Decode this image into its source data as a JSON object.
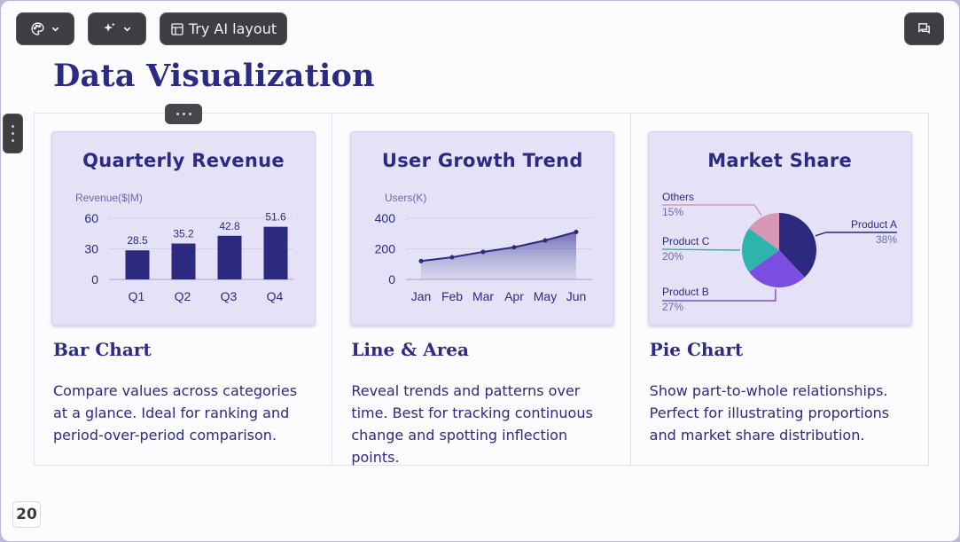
{
  "toolbar": {
    "ai_layout_label": "Try AI layout"
  },
  "slide": {
    "title": "Data Visualization",
    "page_number": "20"
  },
  "cards": [
    {
      "heading": "Bar Chart",
      "description": "Compare values across categories at a glance. Ideal for ranking and period-over-period comparison."
    },
    {
      "heading": "Line & Area",
      "description": "Reveal trends and patterns over time. Best for tracking continuous change and spotting inflection points."
    },
    {
      "heading": "Pie Chart",
      "description": "Show part-to-whole relationships. Perfect for illustrating proportions and market share distribution."
    }
  ],
  "chart_data": [
    {
      "type": "bar",
      "title": "Quarterly Revenue",
      "ylabel": "Revenue($|M)",
      "categories": [
        "Q1",
        "Q2",
        "Q3",
        "Q4"
      ],
      "values": [
        28.5,
        35.2,
        42.8,
        51.6
      ],
      "yticks": [
        0,
        30,
        60
      ],
      "ylim": [
        0,
        60
      ],
      "color": "#2b2a7e",
      "grid": true
    },
    {
      "type": "area",
      "title": "User Growth Trend",
      "ylabel": "Users(K)",
      "categories": [
        "Jan",
        "Feb",
        "Mar",
        "Apr",
        "May",
        "Jun"
      ],
      "values": [
        120,
        145,
        180,
        210,
        255,
        310
      ],
      "yticks": [
        0,
        200,
        400
      ],
      "ylim": [
        0,
        400
      ],
      "color": "#2b2a7e",
      "grid": true
    },
    {
      "type": "pie",
      "title": "Market Share",
      "slices": [
        {
          "label": "Product A",
          "pct": "38%",
          "value": 38,
          "color": "#2b2a7e"
        },
        {
          "label": "Product B",
          "pct": "27%",
          "value": 27,
          "color": "#7a4ee0"
        },
        {
          "label": "Product C",
          "pct": "20%",
          "value": 20,
          "color": "#2fb3ad"
        },
        {
          "label": "Others",
          "pct": "15%",
          "value": 15,
          "color": "#d697b8"
        }
      ]
    }
  ]
}
